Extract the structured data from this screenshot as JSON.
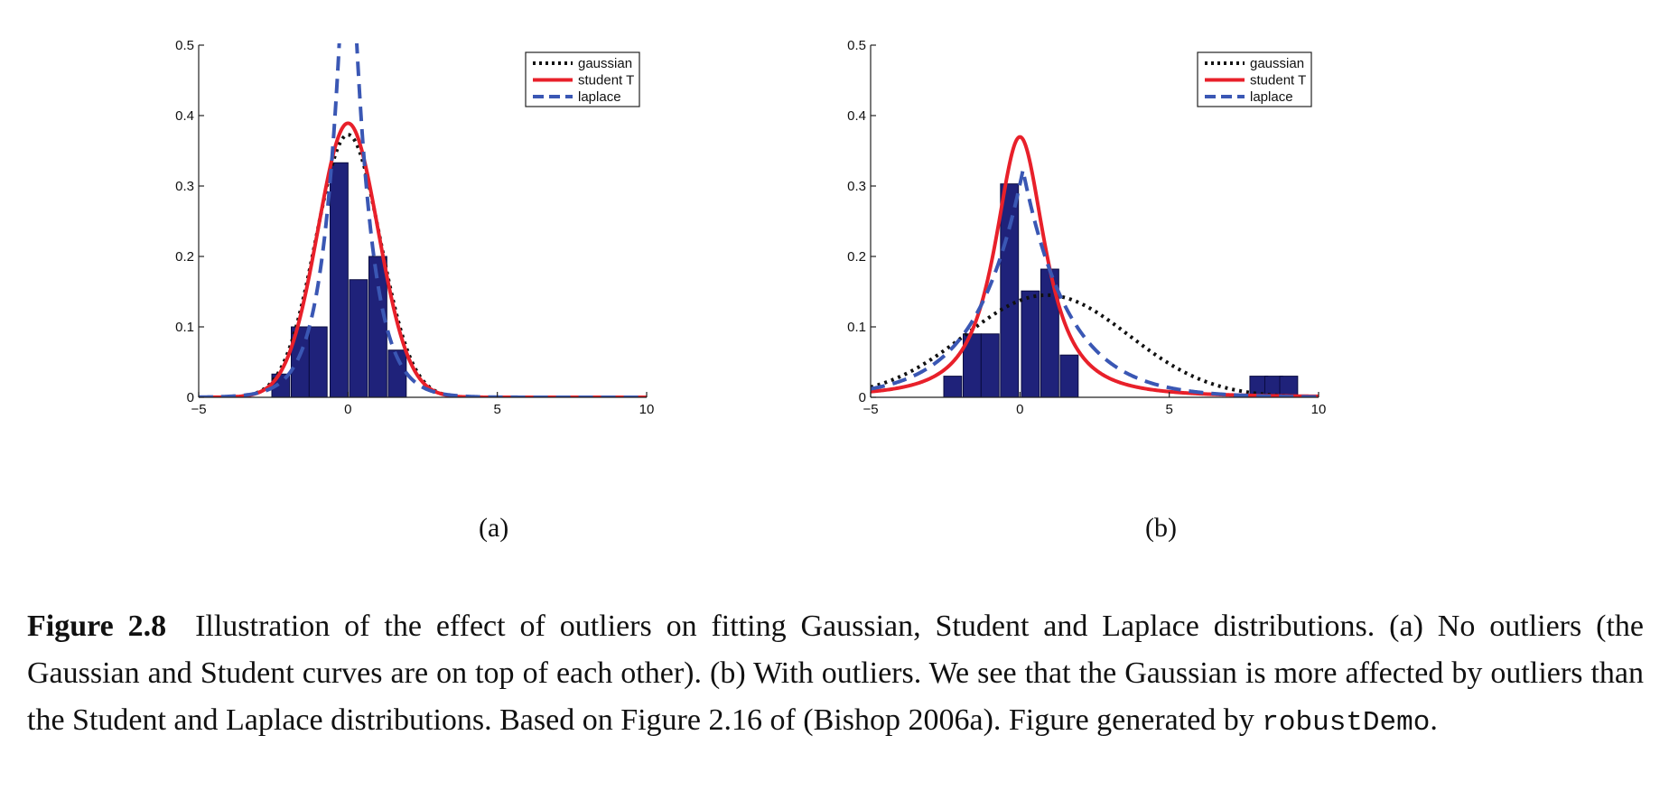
{
  "colors": {
    "bars": "#1f227a",
    "gaussian": "#111111",
    "student": "#e8202a",
    "laplace": "#3a57b4",
    "axes": "#222222"
  },
  "legend": {
    "gaussian": "gaussian",
    "student": "student T",
    "laplace": "laplace"
  },
  "panels": [
    {
      "label": "(a)"
    },
    {
      "label": "(b)"
    }
  ],
  "caption": {
    "figure_label": "Figure 2.8",
    "text_main": "Illustration of the effect of outliers on fitting Gaussian, Student and Laplace distributions. (a) No outliers (the Gaussian and Student curves are on top of each other). (b) With outliers. We see that the Gaussian is more affected by outliers than the Student and Laplace distributions. Based on Figure 2.16 of (Bishop 2006a). Figure generated by",
    "code": "robustDemo",
    "end": "."
  },
  "chart_data": [
    {
      "type": "bar",
      "panel": "(a)",
      "xlim": [
        -5,
        10
      ],
      "ylim": [
        0,
        0.5
      ],
      "xticks": [
        "−5",
        "0",
        "5",
        "10"
      ],
      "yticks": [
        "0",
        "0.1",
        "0.2",
        "0.3",
        "0.4",
        "0.5"
      ],
      "legend_position": "top-right",
      "histogram": {
        "bin_centers": [
          -2.25,
          -1.6,
          -1.0,
          -0.3,
          0.35,
          1.0,
          1.65
        ],
        "bin_width": 0.6,
        "values": [
          0.033,
          0.1,
          0.1,
          0.333,
          0.167,
          0.2,
          0.067
        ]
      },
      "series": [
        {
          "name": "gaussian",
          "dist": "normal",
          "params": {
            "mu": 0.0,
            "sigma": 1.07
          }
        },
        {
          "name": "student T",
          "dist": "student",
          "params": {
            "mu": 0.0,
            "scale": 1.02,
            "nu": 50
          }
        },
        {
          "name": "laplace",
          "dist": "laplace",
          "params": {
            "mu": 0.0,
            "b": 0.62
          }
        }
      ]
    },
    {
      "type": "bar",
      "panel": "(b)",
      "xlim": [
        -5,
        10
      ],
      "ylim": [
        0,
        0.5
      ],
      "xticks": [
        "−5",
        "0",
        "5",
        "10"
      ],
      "yticks": [
        "0",
        "0.1",
        "0.2",
        "0.3",
        "0.4",
        "0.5"
      ],
      "legend_position": "top-right",
      "histogram": {
        "bin_centers": [
          -2.25,
          -1.6,
          -1.0,
          -0.35,
          0.35,
          1.0,
          1.65,
          8.0,
          8.5,
          9.0
        ],
        "bin_width": 0.6,
        "values": [
          0.03,
          0.09,
          0.09,
          0.303,
          0.151,
          0.182,
          0.06,
          0.03,
          0.03,
          0.03
        ]
      },
      "series": [
        {
          "name": "gaussian",
          "dist": "normal",
          "params": {
            "mu": 0.9,
            "sigma": 2.75
          }
        },
        {
          "name": "student T",
          "dist": "student",
          "params": {
            "mu": 0.0,
            "scale": 0.93,
            "nu": 1.6
          }
        },
        {
          "name": "laplace",
          "dist": "laplace",
          "params": {
            "mu": 0.1,
            "b": 1.55
          }
        }
      ]
    }
  ]
}
